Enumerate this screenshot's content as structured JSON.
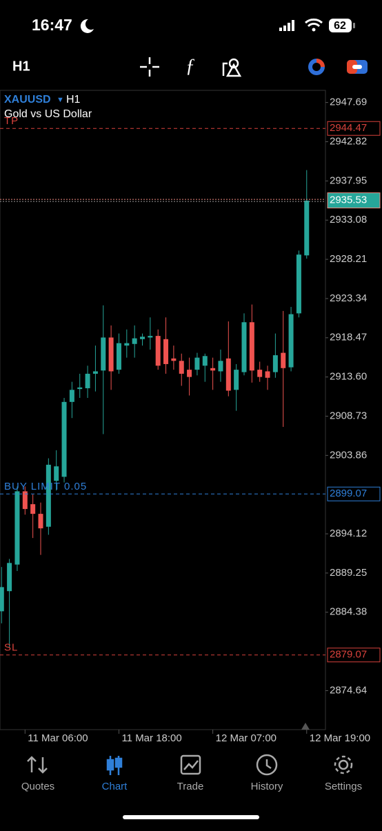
{
  "status_bar": {
    "time": "16:47",
    "battery": "62"
  },
  "toolbar": {
    "timeframe": "H1"
  },
  "chart_data": {
    "type": "candlestick",
    "symbol": "XAUUSD",
    "timeframe": "H1",
    "description": "Gold vs US Dollar",
    "up_color": "#26a69a",
    "down_color": "#ef5350",
    "candles": {
      "open": [
        2884.5,
        2887,
        2890.3,
        2899.4,
        2897.8,
        2896.6,
        2895,
        2900.7,
        2901.2,
        2910.5,
        2912.1,
        2912.2,
        2914,
        2914.4,
        2918.5,
        2914.5,
        2917.5,
        2917.7,
        2918.3,
        2918.5,
        2918.7,
        2918.3,
        2915.9,
        2915.6,
        2914.5,
        2914.5,
        2915,
        2914.7,
        2914.3,
        2915.9,
        2912,
        2914.2,
        2920.4,
        2914.5,
        2914.3,
        2914.2,
        2916.6,
        2914.8,
        2921.5,
        2928.7
      ],
      "high": [
        2890,
        2891,
        2900,
        2900,
        2899,
        2898,
        2903.5,
        2904.5,
        2911,
        2913,
        2914,
        2915,
        2917.5,
        2922.5,
        2920,
        2919,
        2919.5,
        2920,
        2919,
        2921,
        2919.5,
        2921,
        2917.5,
        2916.5,
        2916,
        2916.6,
        2916.5,
        2916,
        2917,
        2920.5,
        2915.2,
        2921.5,
        2922.6,
        2915.5,
        2915,
        2919,
        2921.8,
        2922.3,
        2929.3,
        2939.3
      ],
      "low": [
        2883,
        2880,
        2889.5,
        2896.5,
        2893.6,
        2891.5,
        2894,
        2899.5,
        2900.5,
        2908.5,
        2911,
        2911,
        2911.8,
        2906.5,
        2912,
        2914,
        2916,
        2916,
        2917.5,
        2917,
        2914.5,
        2914,
        2914.5,
        2912.5,
        2911.3,
        2913.8,
        2913,
        2912,
        2913,
        2911.2,
        2909.4,
        2913.8,
        2912.9,
        2913,
        2912,
        2913.5,
        2907.4,
        2914.3,
        2921,
        2928.3
      ],
      "close": [
        2887.5,
        2890.5,
        2899.4,
        2897.2,
        2896.6,
        2894.8,
        2902.7,
        2902.5,
        2910.5,
        2912,
        2912.3,
        2914,
        2914.3,
        2918.5,
        2914.3,
        2917.8,
        2917.8,
        2918.4,
        2918.6,
        2918.7,
        2915,
        2915.2,
        2915.6,
        2914,
        2913.6,
        2916,
        2916.2,
        2914.4,
        2915.6,
        2911.9,
        2914.5,
        2920.4,
        2914.4,
        2913.6,
        2913.5,
        2916.3,
        2914.7,
        2921.4,
        2928.8,
        2935.5
      ]
    },
    "ylim": [
      2869.8,
      2949.2
    ],
    "yticks": [
      2947.69,
      2942.82,
      2937.95,
      2933.08,
      2928.21,
      2923.34,
      2918.47,
      {
        "value": 2913.6,
        "label": "2913.60"
      },
      2908.73,
      2903.86,
      2894.12,
      2889.25,
      2884.38,
      2874.64
    ],
    "xlim": [
      -0.2,
      41.4
    ],
    "xticks": [
      {
        "value": 3,
        "label": "11 Mar 06:00"
      },
      {
        "value": 15,
        "label": "11 Mar 18:00"
      },
      {
        "value": 27,
        "label": "12 Mar 07:00"
      },
      {
        "value": 39,
        "label": "12 Mar 19:00"
      }
    ],
    "current_price": 2935.53,
    "levels": [
      {
        "label": "TP",
        "value": 2944.47,
        "color": "#d9423c"
      },
      {
        "label": "BUY LIMIT 0.05",
        "value": 2899.07,
        "color": "#2f7fd8"
      },
      {
        "label": "SL",
        "value": 2879.07,
        "color": "#d9423c"
      }
    ]
  },
  "nav": {
    "items": [
      "Quotes",
      "Chart",
      "Trade",
      "History",
      "Settings"
    ],
    "active": "Chart"
  }
}
